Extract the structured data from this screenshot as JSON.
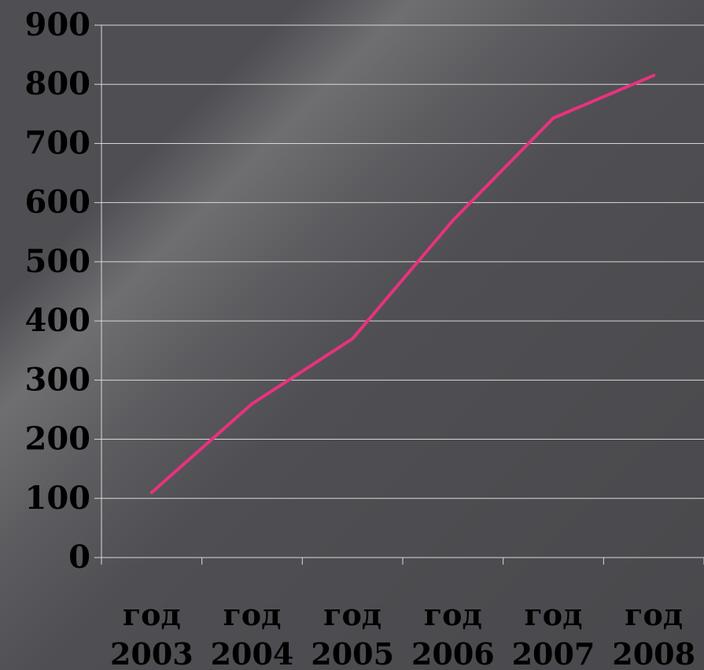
{
  "colors": {
    "line": "#e8327e",
    "grid": "#d9d9d9",
    "axis": "#d9d9d9",
    "text": "#000000"
  },
  "chart_data": {
    "type": "line",
    "categories": [
      [
        "год",
        "2003"
      ],
      [
        "год",
        "2004"
      ],
      [
        "год",
        "2005"
      ],
      [
        "год",
        "2006"
      ],
      [
        "год",
        "2007"
      ],
      [
        "год",
        "2008"
      ]
    ],
    "series": [
      {
        "values": [
          110,
          260,
          370,
          570,
          743,
          815
        ]
      }
    ],
    "ylim": [
      0,
      900
    ],
    "yticks": [
      0,
      100,
      200,
      300,
      400,
      500,
      600,
      700,
      800,
      900
    ],
    "grid": true,
    "legend": "none"
  }
}
